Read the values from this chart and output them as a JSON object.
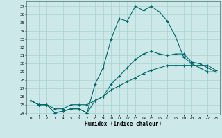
{
  "xlabel": "Humidex (Indice chaleur)",
  "bg_color": "#cce8e8",
  "grid_color": "#aad0d0",
  "line_color": "#006868",
  "ylim": [
    23.8,
    37.6
  ],
  "xlim": [
    -0.5,
    23.5
  ],
  "yticks": [
    24,
    25,
    26,
    27,
    28,
    29,
    30,
    31,
    32,
    33,
    34,
    35,
    36,
    37
  ],
  "xticks": [
    0,
    1,
    2,
    3,
    4,
    5,
    6,
    7,
    8,
    9,
    10,
    11,
    12,
    13,
    14,
    15,
    16,
    17,
    18,
    19,
    20,
    21,
    22,
    23
  ],
  "line1": [
    25.5,
    25.0,
    25.0,
    24.0,
    24.2,
    24.5,
    24.5,
    24.0,
    27.5,
    29.5,
    33.0,
    35.5,
    35.2,
    37.0,
    36.5,
    37.0,
    36.3,
    35.2,
    33.3,
    30.8,
    30.0,
    29.5,
    29.0,
    29.0
  ],
  "line2": [
    25.5,
    25.0,
    25.0,
    24.0,
    24.2,
    24.5,
    24.5,
    24.0,
    25.5,
    26.0,
    27.5,
    28.5,
    29.5,
    30.5,
    31.2,
    31.5,
    31.2,
    31.0,
    31.2,
    31.2,
    30.2,
    30.0,
    29.5,
    29.0
  ],
  "line3": [
    25.5,
    25.0,
    25.0,
    24.5,
    24.5,
    25.0,
    25.0,
    25.0,
    25.5,
    26.0,
    26.8,
    27.3,
    27.8,
    28.3,
    28.8,
    29.2,
    29.5,
    29.8,
    29.8,
    29.8,
    29.8,
    29.8,
    29.8,
    29.2
  ]
}
